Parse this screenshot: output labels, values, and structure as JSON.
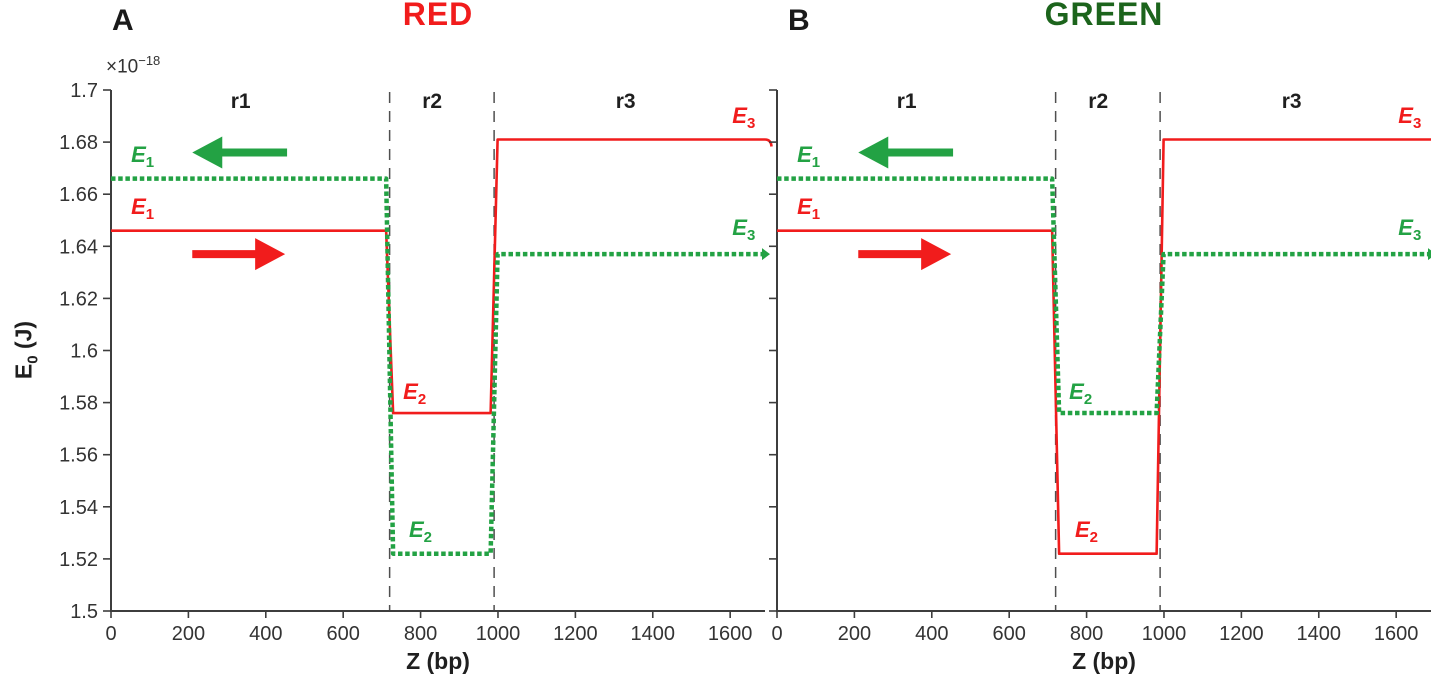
{
  "figure": {
    "background": "#ffffff",
    "ylabel": {
      "base": "E",
      "sub": "0",
      "unit": " (J)"
    },
    "y_exponent": {
      "base": "×10",
      "sup": "−18"
    },
    "colors": {
      "red": "#f11c1c",
      "green": "#23a244",
      "title_green": "#1c641c",
      "axis": "#3d3d3d",
      "tick_text": "#333333",
      "region_text": "#1f1f1f",
      "boundary": "#4f4f4f"
    }
  },
  "chart_data": [
    {
      "type": "line",
      "panel_letter": "A",
      "title": "RED",
      "title_color_key": "red",
      "xlabel": "Z (bp)",
      "ylabel": "E0 (J)",
      "y_scale_factor": "×10^−18",
      "xlim": [
        0,
        1690
      ],
      "ylim": [
        1.5,
        1.7
      ],
      "xticks": [
        0,
        200,
        400,
        600,
        800,
        1000,
        1200,
        1400,
        1600
      ],
      "yticks": [
        1.7,
        1.68,
        1.66,
        1.64,
        1.62,
        1.6,
        1.58,
        1.56,
        1.54,
        1.52,
        1.5
      ],
      "ytick_labels": [
        "1.7",
        "1.68",
        "1.66",
        "1.64",
        "1.62",
        "1.6",
        "1.58",
        "1.56",
        "1.54",
        "1.52",
        "1.5"
      ],
      "show_ytick_labels": true,
      "grid": false,
      "region_boundaries_bp": [
        720,
        990
      ],
      "regions": [
        {
          "label": "r1",
          "center_bp": 335
        },
        {
          "label": "r2",
          "center_bp": 830
        },
        {
          "label": "r3",
          "center_bp": 1330
        }
      ],
      "series": [
        {
          "name": "red-solid",
          "color_key": "red",
          "style": "solid",
          "levels": [
            1.646,
            1.576,
            1.681
          ]
        },
        {
          "name": "green-dotted",
          "color_key": "green",
          "style": "dotted",
          "levels": [
            1.666,
            1.522,
            1.637
          ]
        }
      ],
      "annotations": [
        {
          "text": "E",
          "sub": "1",
          "color_key": "green",
          "bp": 52,
          "y": 1.675,
          "anchor": "start"
        },
        {
          "text": "E",
          "sub": "1",
          "color_key": "red",
          "bp": 52,
          "y": 1.655,
          "anchor": "start"
        },
        {
          "text": "E",
          "sub": "2",
          "color_key": "red",
          "bp": 755,
          "y": 1.584,
          "anchor": "start"
        },
        {
          "text": "E",
          "sub": "2",
          "color_key": "green",
          "bp": 770,
          "y": 1.531,
          "anchor": "start"
        },
        {
          "text": "E",
          "sub": "3",
          "color_key": "red",
          "bp": 1665,
          "y": 1.69,
          "anchor": "end"
        },
        {
          "text": "E",
          "sub": "3",
          "color_key": "green",
          "bp": 1665,
          "y": 1.647,
          "anchor": "end"
        }
      ],
      "arrows": [
        {
          "color_key": "green",
          "direction": "left",
          "from_bp": 455,
          "to_bp": 210,
          "y": 1.676
        },
        {
          "color_key": "red",
          "direction": "right",
          "from_bp": 210,
          "to_bp": 450,
          "y": 1.637
        }
      ]
    },
    {
      "type": "line",
      "panel_letter": "B",
      "title": "GREEN",
      "title_color_key": "title_green",
      "xlabel": "Z (bp)",
      "ylabel": "E0 (J)",
      "y_scale_factor": "×10^−18",
      "xlim": [
        0,
        1690
      ],
      "ylim": [
        1.5,
        1.7
      ],
      "xticks": [
        0,
        200,
        400,
        600,
        800,
        1000,
        1200,
        1400,
        1600
      ],
      "yticks": [
        1.7,
        1.68,
        1.66,
        1.64,
        1.62,
        1.6,
        1.58,
        1.56,
        1.54,
        1.52,
        1.5
      ],
      "ytick_labels": [
        "1.7",
        "1.68",
        "1.66",
        "1.64",
        "1.62",
        "1.6",
        "1.58",
        "1.56",
        "1.54",
        "1.52",
        "1.5"
      ],
      "show_ytick_labels": false,
      "grid": false,
      "region_boundaries_bp": [
        720,
        990
      ],
      "regions": [
        {
          "label": "r1",
          "center_bp": 335
        },
        {
          "label": "r2",
          "center_bp": 830
        },
        {
          "label": "r3",
          "center_bp": 1330
        }
      ],
      "series": [
        {
          "name": "red-solid",
          "color_key": "red",
          "style": "solid",
          "levels": [
            1.646,
            1.522,
            1.681
          ]
        },
        {
          "name": "green-dotted",
          "color_key": "green",
          "style": "dotted",
          "levels": [
            1.666,
            1.576,
            1.637
          ]
        }
      ],
      "annotations": [
        {
          "text": "E",
          "sub": "1",
          "color_key": "green",
          "bp": 52,
          "y": 1.675,
          "anchor": "start"
        },
        {
          "text": "E",
          "sub": "1",
          "color_key": "red",
          "bp": 52,
          "y": 1.655,
          "anchor": "start"
        },
        {
          "text": "E",
          "sub": "2",
          "color_key": "green",
          "bp": 755,
          "y": 1.584,
          "anchor": "start"
        },
        {
          "text": "E",
          "sub": "2",
          "color_key": "red",
          "bp": 770,
          "y": 1.531,
          "anchor": "start"
        },
        {
          "text": "E",
          "sub": "3",
          "color_key": "red",
          "bp": 1665,
          "y": 1.69,
          "anchor": "end"
        },
        {
          "text": "E",
          "sub": "3",
          "color_key": "green",
          "bp": 1665,
          "y": 1.647,
          "anchor": "end"
        }
      ],
      "arrows": [
        {
          "color_key": "green",
          "direction": "left",
          "from_bp": 455,
          "to_bp": 210,
          "y": 1.676
        },
        {
          "color_key": "red",
          "direction": "right",
          "from_bp": 210,
          "to_bp": 450,
          "y": 1.637
        }
      ]
    }
  ]
}
